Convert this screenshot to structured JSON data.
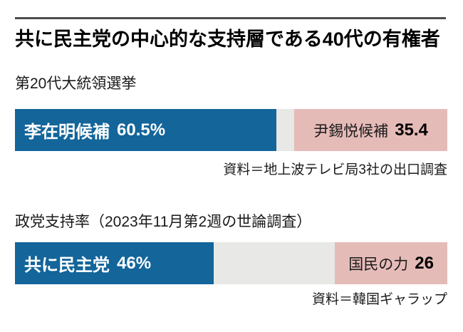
{
  "header": {
    "title": "共に民主党の中心的な支持層である40代の有権者"
  },
  "colors": {
    "rule": "#4d4d4d",
    "blue": "#13659a",
    "pink": "#e5bbb8",
    "track_gray": "#e8e8e6",
    "blue_text": "#ffffff",
    "pink_text": "#1a1a1a",
    "background": "#ffffff"
  },
  "chart_data": [
    {
      "type": "bar",
      "orientation": "horizontal",
      "title": "第20代大統領選挙",
      "unit": "%",
      "axis_range": [
        0,
        100
      ],
      "grid": false,
      "legend": "none",
      "series": [
        {
          "name": "李在明候補",
          "value": 60.5,
          "value_text": "60.5%",
          "color": "#13659a",
          "align": "left"
        },
        {
          "name": "尹錫悦候補",
          "value": 35.4,
          "value_text": "35.4",
          "color": "#e5bbb8",
          "align": "right"
        }
      ],
      "gap_pct": 4.1,
      "source": "資料＝地上波テレビ局3社の出口調査"
    },
    {
      "type": "bar",
      "orientation": "horizontal",
      "title": "政党支持率（2023年11月第2週の世論調査）",
      "unit": "%",
      "axis_range": [
        0,
        100
      ],
      "grid": false,
      "legend": "none",
      "series": [
        {
          "name": "共に民主党",
          "value": 46,
          "value_text": "46%",
          "color": "#13659a",
          "align": "left"
        },
        {
          "name": "国民の力",
          "value": 26,
          "value_text": "26",
          "color": "#e5bbb8",
          "align": "right"
        }
      ],
      "gap_pct": 28,
      "source": "資料＝韓国ギャラップ"
    }
  ]
}
